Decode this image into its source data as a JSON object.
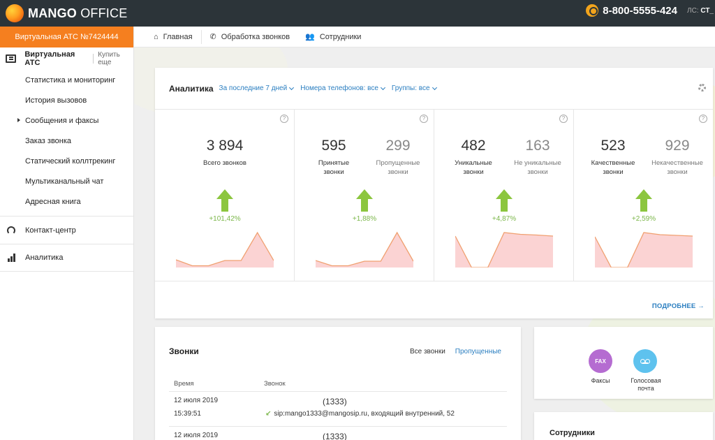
{
  "header": {
    "logo_bold": "MANGO",
    "logo_light": " OFFICE",
    "phone": "8-800-5555-424",
    "account_label": "ЛС:",
    "account_value": "СТ_"
  },
  "sidebar": {
    "ats_label": "Виртуальная АТС №7424444",
    "section_title": "Виртуальная АТС",
    "buy_more": "Купить еще",
    "items": [
      {
        "label": "Статистика и мониторинг"
      },
      {
        "label": "История вызовов"
      },
      {
        "label": "Сообщения и факсы"
      },
      {
        "label": "Заказ звонка"
      },
      {
        "label": "Статический коллтрекинг"
      },
      {
        "label": "Мультиканальный чат"
      },
      {
        "label": "Адресная книга"
      }
    ],
    "contact_center": "Контакт-центр",
    "analytics": "Аналитика"
  },
  "nav": {
    "home": "Главная",
    "call_processing": "Обработка звонков",
    "employees": "Сотрудники"
  },
  "analytics": {
    "title": "Аналитика",
    "filter_period": "За последние 7 дней",
    "filter_numbers": "Номера телефонов: все",
    "filter_groups": "Группы: все",
    "more": "ПОДРОБНЕЕ",
    "help": "?",
    "panels": [
      {
        "value": "3 894",
        "label": "Всего звонков",
        "change": "+101,42%",
        "trend": [
          0.22,
          0.05,
          0.05,
          0.2,
          0.2,
          1.0,
          0.2
        ]
      },
      {
        "value": "595",
        "label": "Принятые звонки",
        "value2": "299",
        "label2": "Пропущенные звонки",
        "change": "+1,88%",
        "trend": [
          0.2,
          0.05,
          0.05,
          0.18,
          0.18,
          1.0,
          0.18
        ]
      },
      {
        "value": "482",
        "label": "Уникальные звонки",
        "value2": "163",
        "label2": "Не уникальные звонки",
        "change": "+4,87%",
        "trend": [
          0.9,
          0.0,
          0.0,
          1.0,
          0.95,
          0.93,
          0.9
        ]
      },
      {
        "value": "523",
        "label": "Качественные звонки",
        "value2": "929",
        "label2": "Некачественные звонки",
        "change": "+2,59%",
        "trend": [
          0.88,
          0.0,
          0.0,
          1.0,
          0.94,
          0.92,
          0.9
        ]
      }
    ]
  },
  "calls": {
    "title": "Звонки",
    "tab_all": "Все звонки",
    "tab_missed": "Пропущенные",
    "col_time": "Время",
    "col_call": "Звонок",
    "rows": [
      {
        "date": "12 июля 2019",
        "time": "15:39:51",
        "number": "(1333)",
        "details": "sip:mango1333@mangosip.ru, входящий внутренний, 52"
      },
      {
        "date": "12 июля 2019",
        "number": "(1333)"
      }
    ]
  },
  "extras": {
    "fax_icon": "FAX",
    "fax_label": "Факсы",
    "voicemail_label_1": "Голосовая",
    "voicemail_label_2": "почта"
  },
  "staff": {
    "title": "Сотрудники"
  },
  "colors": {
    "accent_orange": "#f57f1f",
    "link_blue": "#2a7ec0",
    "positive_green": "#7ab648",
    "spark_fill": "#fbd3d3",
    "spark_line": "#f0a070"
  }
}
